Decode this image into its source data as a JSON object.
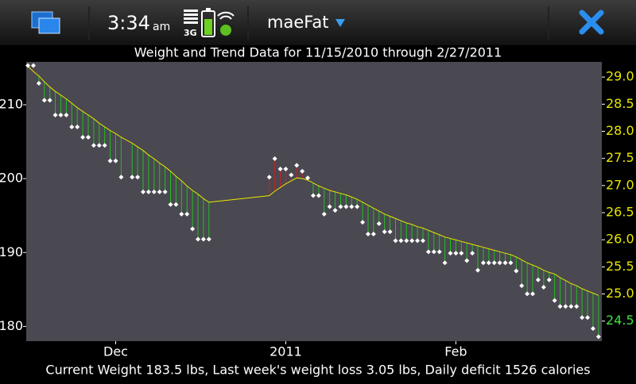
{
  "header": {
    "time": "3:34",
    "ampm": "am",
    "network": "3G",
    "app_name": "maeFat"
  },
  "chart_data": {
    "type": "line",
    "title": "Weight and Trend Data for 11/15/2010 through 2/27/2011",
    "status_text": "Current Weight 183.5 lbs, Last week's weight loss 3.05 lbs, Daily deficit 1526 calories",
    "x": [
      0,
      1,
      2,
      3,
      4,
      5,
      6,
      7,
      8,
      9,
      10,
      11,
      12,
      13,
      14,
      15,
      16,
      17,
      19,
      20,
      21,
      22,
      23,
      24,
      25,
      26,
      27,
      28,
      29,
      30,
      31,
      32,
      33,
      44,
      45,
      46,
      47,
      48,
      49,
      50,
      51,
      52,
      53,
      54,
      55,
      56,
      57,
      58,
      59,
      60,
      61,
      62,
      63,
      64,
      65,
      66,
      67,
      68,
      69,
      70,
      71,
      72,
      73,
      74,
      75,
      76,
      77,
      78,
      79,
      80,
      81,
      82,
      83,
      84,
      85,
      86,
      87,
      88,
      89,
      90,
      91,
      92,
      93,
      94,
      95,
      96,
      97,
      98,
      99,
      100,
      101,
      102,
      103,
      104
    ],
    "series": [
      {
        "color": "#ffffff",
        "values": [
          215.3,
          215.3,
          212.9,
          210.6,
          210.6,
          208.6,
          208.6,
          208.6,
          207.0,
          207.0,
          205.6,
          205.6,
          204.5,
          204.5,
          204.5,
          202.4,
          202.4,
          200.2,
          200.2,
          200.2,
          198.2,
          198.2,
          198.2,
          198.2,
          198.2,
          196.5,
          196.5,
          195.2,
          195.2,
          193.2,
          191.8,
          191.8,
          191.8,
          200.2,
          202.7,
          201.3,
          201.3,
          200.5,
          201.8,
          201.0,
          200.1,
          197.7,
          197.7,
          195.2,
          196.2,
          195.7,
          196.2,
          196.2,
          196.2,
          196.2,
          194.1,
          192.5,
          192.5,
          193.9,
          192.8,
          192.8,
          191.6,
          191.6,
          191.6,
          191.6,
          191.6,
          191.6,
          190.1,
          190.1,
          190.1,
          188.6,
          189.9,
          189.9,
          189.9,
          188.9,
          189.9,
          187.6,
          188.6,
          188.6,
          188.6,
          188.6,
          188.6,
          188.6,
          187.5,
          185.5,
          184.4,
          184.4,
          186.3,
          185.3,
          186.3,
          183.5,
          182.7,
          182.7,
          182.7,
          182.7,
          181.2,
          181.2,
          179.7,
          178.6
        ]
      },
      {
        "color": "#e6e600",
        "values": [
          215.2,
          214.5,
          213.9,
          213.1,
          212.4,
          211.8,
          211.3,
          210.8,
          210.2,
          209.6,
          209.1,
          208.6,
          208.1,
          207.5,
          207.0,
          206.5,
          206.1,
          205.6,
          204.8,
          204.3,
          203.8,
          203.2,
          202.7,
          202.1,
          201.6,
          201.0,
          200.3,
          199.7,
          199.0,
          198.4,
          197.9,
          197.3,
          196.8,
          197.7,
          198.3,
          198.8,
          199.3,
          199.7,
          200.1,
          200.0,
          199.8,
          199.4,
          199.0,
          198.7,
          198.4,
          198.2,
          198.0,
          197.8,
          197.5,
          197.2,
          196.8,
          196.4,
          196.0,
          195.6,
          195.2,
          194.9,
          194.6,
          194.3,
          194.0,
          193.8,
          193.5,
          193.3,
          193.0,
          192.7,
          192.4,
          192.1,
          191.9,
          191.7,
          191.5,
          191.3,
          191.1,
          190.9,
          190.7,
          190.5,
          190.3,
          190.1,
          189.9,
          189.7,
          189.4,
          189.0,
          188.6,
          188.3,
          188.0,
          187.6,
          187.3,
          187.1,
          186.6,
          186.2,
          185.8,
          185.5,
          185.1,
          184.8,
          184.5,
          184.2
        ]
      }
    ],
    "above_color": "#cc2020",
    "below_color": "#20c020",
    "xlim": [
      -0.3,
      104.6
    ],
    "xticks": [
      {
        "value": 16,
        "label": "Dec"
      },
      {
        "value": 47,
        "label": "2011"
      },
      {
        "value": 78,
        "label": "Feb"
      }
    ],
    "ylim": [
      178,
      215.8
    ],
    "yticks": [
      180,
      190,
      200,
      210
    ],
    "y2lim": [
      24.13,
      29.28
    ],
    "y2ticks": [
      {
        "value": 24.5,
        "label": "24.5"
      },
      {
        "value": 25,
        "label": "25.0"
      },
      {
        "value": 25.5,
        "label": "25.5"
      },
      {
        "value": 26,
        "label": "26.0"
      },
      {
        "value": 26.5,
        "label": "26.5"
      },
      {
        "value": 27,
        "label": "27.0"
      },
      {
        "value": 27.5,
        "label": "27.5"
      },
      {
        "value": 28,
        "label": "28.0"
      },
      {
        "value": 28.5,
        "label": "28.5"
      },
      {
        "value": 29,
        "label": "29.0"
      }
    ],
    "y2tick_colors": [
      "#40e040",
      "#e6e600",
      "#e6e600",
      "#e6e600",
      "#e6e600",
      "#e6e600",
      "#e6e600",
      "#e6e600",
      "#e6e600",
      "#e6e600"
    ],
    "plot_background": "#4a4850"
  }
}
